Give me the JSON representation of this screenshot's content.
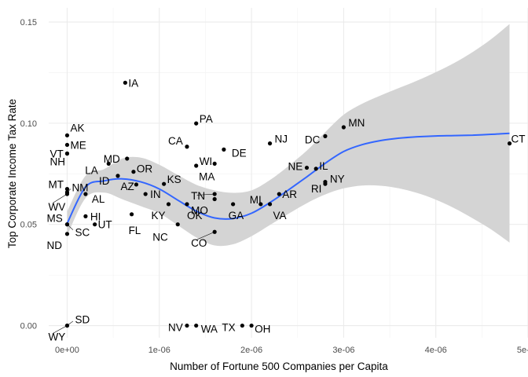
{
  "chart_data": {
    "type": "scatter",
    "title": "",
    "xlabel": "Number of Fortune 500 Companies per Capita",
    "ylabel": "Top Corporate Income Tax Rate",
    "xlim": [
      -2e-07,
      5e-06
    ],
    "ylim": [
      -0.006,
      0.157
    ],
    "x_ticks": [
      0,
      1e-06,
      2e-06,
      3e-06,
      4e-06,
      5e-06
    ],
    "x_tick_labels": [
      "0e+00",
      "1e-06",
      "2e-06",
      "3e-06",
      "4e-06",
      "5e-06"
    ],
    "y_ticks": [
      0.0,
      0.05,
      0.1,
      0.15
    ],
    "y_tick_labels": [
      "0.00",
      "0.05",
      "0.10",
      "0.15"
    ],
    "grid": true,
    "points": [
      {
        "label": "IA",
        "x": 6.3e-07,
        "y": 0.12
      },
      {
        "label": "PA",
        "x": 1.4e-06,
        "y": 0.0999
      },
      {
        "label": "AK",
        "x": 0.0,
        "y": 0.094
      },
      {
        "label": "VT",
        "x": 0.0,
        "y": 0.085
      },
      {
        "label": "ME",
        "x": 0.0,
        "y": 0.0893
      },
      {
        "label": "NH",
        "x": 0.0,
        "y": 0.085
      },
      {
        "label": "CA",
        "x": 1.3e-06,
        "y": 0.0884
      },
      {
        "label": "NJ",
        "x": 2.2e-06,
        "y": 0.09
      },
      {
        "label": "MN",
        "x": 3e-06,
        "y": 0.098
      },
      {
        "label": "DC",
        "x": 2.8e-06,
        "y": 0.0936
      },
      {
        "label": "CT",
        "x": 4.8e-06,
        "y": 0.09
      },
      {
        "label": "MD",
        "x": 6.5e-07,
        "y": 0.0825
      },
      {
        "label": "WI",
        "x": 1.4e-06,
        "y": 0.079
      },
      {
        "label": "DE",
        "x": 1.7e-06,
        "y": 0.087
      },
      {
        "label": "LA",
        "x": 4.5e-07,
        "y": 0.08
      },
      {
        "label": "OR",
        "x": 7.2e-07,
        "y": 0.076
      },
      {
        "label": "NE",
        "x": 2.6e-06,
        "y": 0.078
      },
      {
        "label": "IL",
        "x": 2.7e-06,
        "y": 0.0775
      },
      {
        "label": "MA",
        "x": 1.6e-06,
        "y": 0.08
      },
      {
        "label": "MT",
        "x": 0.0,
        "y": 0.0675
      },
      {
        "label": "ID",
        "x": 5.5e-07,
        "y": 0.074
      },
      {
        "label": "KS",
        "x": 1.05e-06,
        "y": 0.07
      },
      {
        "label": "NY",
        "x": 2.8e-06,
        "y": 0.071
      },
      {
        "label": "RI",
        "x": 2.8e-06,
        "y": 0.07
      },
      {
        "label": "NM",
        "x": 0.0,
        "y": 0.0659
      },
      {
        "label": "AZ",
        "x": 7.5e-07,
        "y": 0.0697
      },
      {
        "label": "IN",
        "x": 8.5e-07,
        "y": 0.065
      },
      {
        "label": "TN",
        "x": 1.6e-06,
        "y": 0.065
      },
      {
        "label": "AR",
        "x": 2.3e-06,
        "y": 0.065
      },
      {
        "label": "WV",
        "x": 0.0,
        "y": 0.065
      },
      {
        "label": "AL",
        "x": 2e-07,
        "y": 0.065
      },
      {
        "label": "MO",
        "x": 1.6e-06,
        "y": 0.0625
      },
      {
        "label": "MI",
        "x": 2.1e-06,
        "y": 0.06
      },
      {
        "label": "GA",
        "x": 1.8e-06,
        "y": 0.06
      },
      {
        "label": "VA",
        "x": 2.2e-06,
        "y": 0.06
      },
      {
        "label": "KY",
        "x": 1.1e-06,
        "y": 0.06
      },
      {
        "label": "OK",
        "x": 1.3e-06,
        "y": 0.06
      },
      {
        "label": "FL",
        "x": 7e-07,
        "y": 0.055
      },
      {
        "label": "MS",
        "x": 0.0,
        "y": 0.05
      },
      {
        "label": "HI",
        "x": 2e-07,
        "y": 0.054
      },
      {
        "label": "UT",
        "x": 3e-07,
        "y": 0.05
      },
      {
        "label": "SC",
        "x": 0.0,
        "y": 0.05
      },
      {
        "label": "ND",
        "x": 0.0,
        "y": 0.0453
      },
      {
        "label": "NC",
        "x": 1.2e-06,
        "y": 0.05
      },
      {
        "label": "CO",
        "x": 1.6e-06,
        "y": 0.0463
      },
      {
        "label": "SD",
        "x": 0.0,
        "y": 0.0
      },
      {
        "label": "WY",
        "x": 0.0,
        "y": 0.0
      },
      {
        "label": "NV",
        "x": 1.3e-06,
        "y": 0.0
      },
      {
        "label": "WA",
        "x": 1.4e-06,
        "y": 0.0
      },
      {
        "label": "TX",
        "x": 1.9e-06,
        "y": 0.0
      },
      {
        "label": "OH",
        "x": 2e-06,
        "y": 0.0
      }
    ],
    "smooth": {
      "method": "loess",
      "color": "#3366FF",
      "band_color": "#d4d4d4",
      "x": [
        0,
        2e-07,
        4e-07,
        6e-07,
        8e-07,
        1e-06,
        1.2e-06,
        1.4e-06,
        1.6e-06,
        1.8e-06,
        2e-06,
        2.2e-06,
        2.4e-06,
        2.6e-06,
        2.8e-06,
        3e-06,
        3.2e-06,
        3.4e-06,
        3.6e-06,
        3.8e-06,
        4e-06,
        4.2e-06,
        4.4e-06,
        4.6e-06,
        4.8e-06
      ],
      "y": [
        0.0505,
        0.0685,
        0.0715,
        0.0725,
        0.071,
        0.0675,
        0.062,
        0.0566,
        0.0532,
        0.0529,
        0.0555,
        0.0608,
        0.067,
        0.0735,
        0.0802,
        0.086,
        0.0894,
        0.0914,
        0.0926,
        0.0933,
        0.0937,
        0.0939,
        0.0941,
        0.0945,
        0.095
      ],
      "lower": [
        0.0445,
        0.063,
        0.0657,
        0.0624,
        0.059,
        0.0555,
        0.0496,
        0.0436,
        0.0396,
        0.0402,
        0.0442,
        0.0497,
        0.0552,
        0.0605,
        0.0648,
        0.0678,
        0.0692,
        0.0691,
        0.0678,
        0.0655,
        0.0622,
        0.058,
        0.053,
        0.0475,
        0.041
      ],
      "upper": [
        0.0565,
        0.074,
        0.0773,
        0.0826,
        0.083,
        0.0795,
        0.0744,
        0.0696,
        0.0668,
        0.0656,
        0.0668,
        0.0719,
        0.0788,
        0.0865,
        0.0956,
        0.1042,
        0.1096,
        0.1137,
        0.1174,
        0.1211,
        0.1252,
        0.1298,
        0.1352,
        0.1415,
        0.149
      ]
    }
  }
}
